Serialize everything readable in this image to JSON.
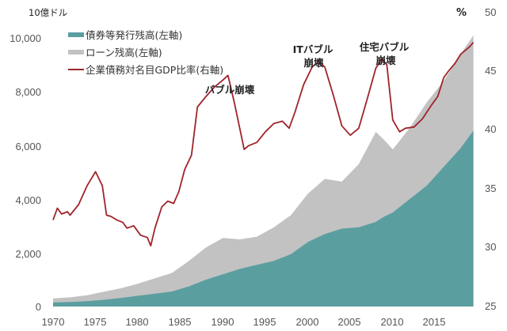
{
  "chart_data": {
    "type": "area",
    "title": "",
    "left_axis": {
      "unit_label": "10億ドル",
      "ylim": [
        0,
        10000
      ],
      "ticks": [
        "0",
        "2,000",
        "4,000",
        "6,000",
        "8,000",
        "10,000"
      ]
    },
    "right_axis": {
      "unit_label": "%",
      "ylim": [
        25,
        50
      ],
      "ticks": [
        "25",
        "30",
        "35",
        "40",
        "45",
        "50"
      ]
    },
    "x_axis": {
      "xlim": [
        1970,
        2019.5
      ],
      "ticks": [
        "1970",
        "1975",
        "1980",
        "1985",
        "1990",
        "1995",
        "2000",
        "2005",
        "2010",
        "2015"
      ]
    },
    "legend": {
      "position": "upper-left",
      "entries": [
        "債券等発行残高(左軸)",
        "ローン残高(左軸)",
        "企業債務対名目GDP比率(右軸)"
      ]
    },
    "colors": {
      "bonds": "#5b9ea0",
      "loans": "#c2c2c2",
      "ratio": "#a0232a"
    },
    "x": [
      1970,
      1972,
      1974,
      1976,
      1978,
      1980,
      1982,
      1984,
      1986,
      1988,
      1990,
      1992,
      1994,
      1996,
      1998,
      2000,
      2002,
      2004,
      2006,
      2008,
      2009,
      2010,
      2012,
      2014,
      2016,
      2018,
      2019.5
    ],
    "series": [
      {
        "name": "債券等発行残高(左軸)",
        "axis": "left",
        "stacked": true,
        "values": [
          150,
          170,
          200,
          250,
          320,
          400,
          480,
          560,
          750,
          1000,
          1200,
          1400,
          1550,
          1700,
          1950,
          2400,
          2700,
          2900,
          2950,
          3150,
          3350,
          3500,
          4000,
          4500,
          5200,
          5900,
          6550
        ]
      },
      {
        "name": "ローン残高(左軸)",
        "axis": "left",
        "stacked": true,
        "note": "stack top (bonds + loans)",
        "values": [
          300,
          340,
          420,
          550,
          680,
          850,
          1050,
          1250,
          1700,
          2200,
          2550,
          2500,
          2600,
          2950,
          3400,
          4200,
          4750,
          4650,
          5300,
          6500,
          6200,
          5850,
          6650,
          7600,
          8400,
          9400,
          10100
        ]
      },
      {
        "name": "企業債務対名目GDP比率(右軸)",
        "axis": "right",
        "x": [
          1970,
          1970.5,
          1971,
          1971.7,
          1972,
          1973,
          1974,
          1975,
          1975.8,
          1976.3,
          1976.8,
          1977.5,
          1978.2,
          1978.7,
          1979.5,
          1980.3,
          1981.1,
          1981.5,
          1982,
          1982.8,
          1983.5,
          1984.2,
          1984.8,
          1985.5,
          1986.3,
          1987,
          1988,
          1989,
          1990,
          1990.6,
          1991.4,
          1992.5,
          1993,
          1994,
          1995,
          1996,
          1997,
          1997.8,
          1998.5,
          1999.5,
          2000.5,
          2001.3,
          2002,
          2003,
          2004,
          2005,
          2006,
          2007,
          2008,
          2008.7,
          2009.3,
          2010,
          2010.8,
          2011.5,
          2012.5,
          2013.5,
          2014.5,
          2015.3,
          2016,
          2016.6,
          2017.3,
          2018,
          2019,
          2019.5
        ],
        "values": [
          32.3,
          33.3,
          32.8,
          33.0,
          32.7,
          33.6,
          35.2,
          36.4,
          35.2,
          32.7,
          32.6,
          32.3,
          32.1,
          31.6,
          31.8,
          31.0,
          30.8,
          30.1,
          31.6,
          33.4,
          33.9,
          33.7,
          34.7,
          36.6,
          37.8,
          41.9,
          42.8,
          43.6,
          44.2,
          44.6,
          42.1,
          38.3,
          38.6,
          38.9,
          39.8,
          40.5,
          40.7,
          40.1,
          41.5,
          43.8,
          45.3,
          45.8,
          45.3,
          42.9,
          40.3,
          39.5,
          40.1,
          42.6,
          45.2,
          46.0,
          45.5,
          40.8,
          39.8,
          40.1,
          40.2,
          40.9,
          42.0,
          42.8,
          44.4,
          45.0,
          45.6,
          46.4,
          47.0,
          47.4
        ]
      }
    ],
    "annotations": [
      {
        "text": "バブル崩壊",
        "x": 1990
      },
      {
        "text": "ITバブル崩壊",
        "x": 2001
      },
      {
        "text": "住宅バブル崩壊",
        "x": 2008.5
      }
    ]
  },
  "labels": {
    "left_unit": "10億ドル",
    "right_unit": "%",
    "left_ticks": [
      "0",
      "2,000",
      "4,000",
      "6,000",
      "8,000",
      "10,000"
    ],
    "right_ticks": [
      "25",
      "30",
      "35",
      "40",
      "45",
      "50"
    ],
    "x_ticks": [
      "1970",
      "1975",
      "1980",
      "1985",
      "1990",
      "1995",
      "2000",
      "2005",
      "2010",
      "2015"
    ],
    "legend": [
      "債券等発行残高(左軸)",
      "ローン残高(左軸)",
      "企業債務対名目GDP比率(右軸)"
    ],
    "annot_bubble": "バブル崩壊",
    "annot_it_1": "ITバブル",
    "annot_it_2": "崩壊",
    "annot_housing_1": "住宅バブル",
    "annot_housing_2": "崩壊"
  }
}
